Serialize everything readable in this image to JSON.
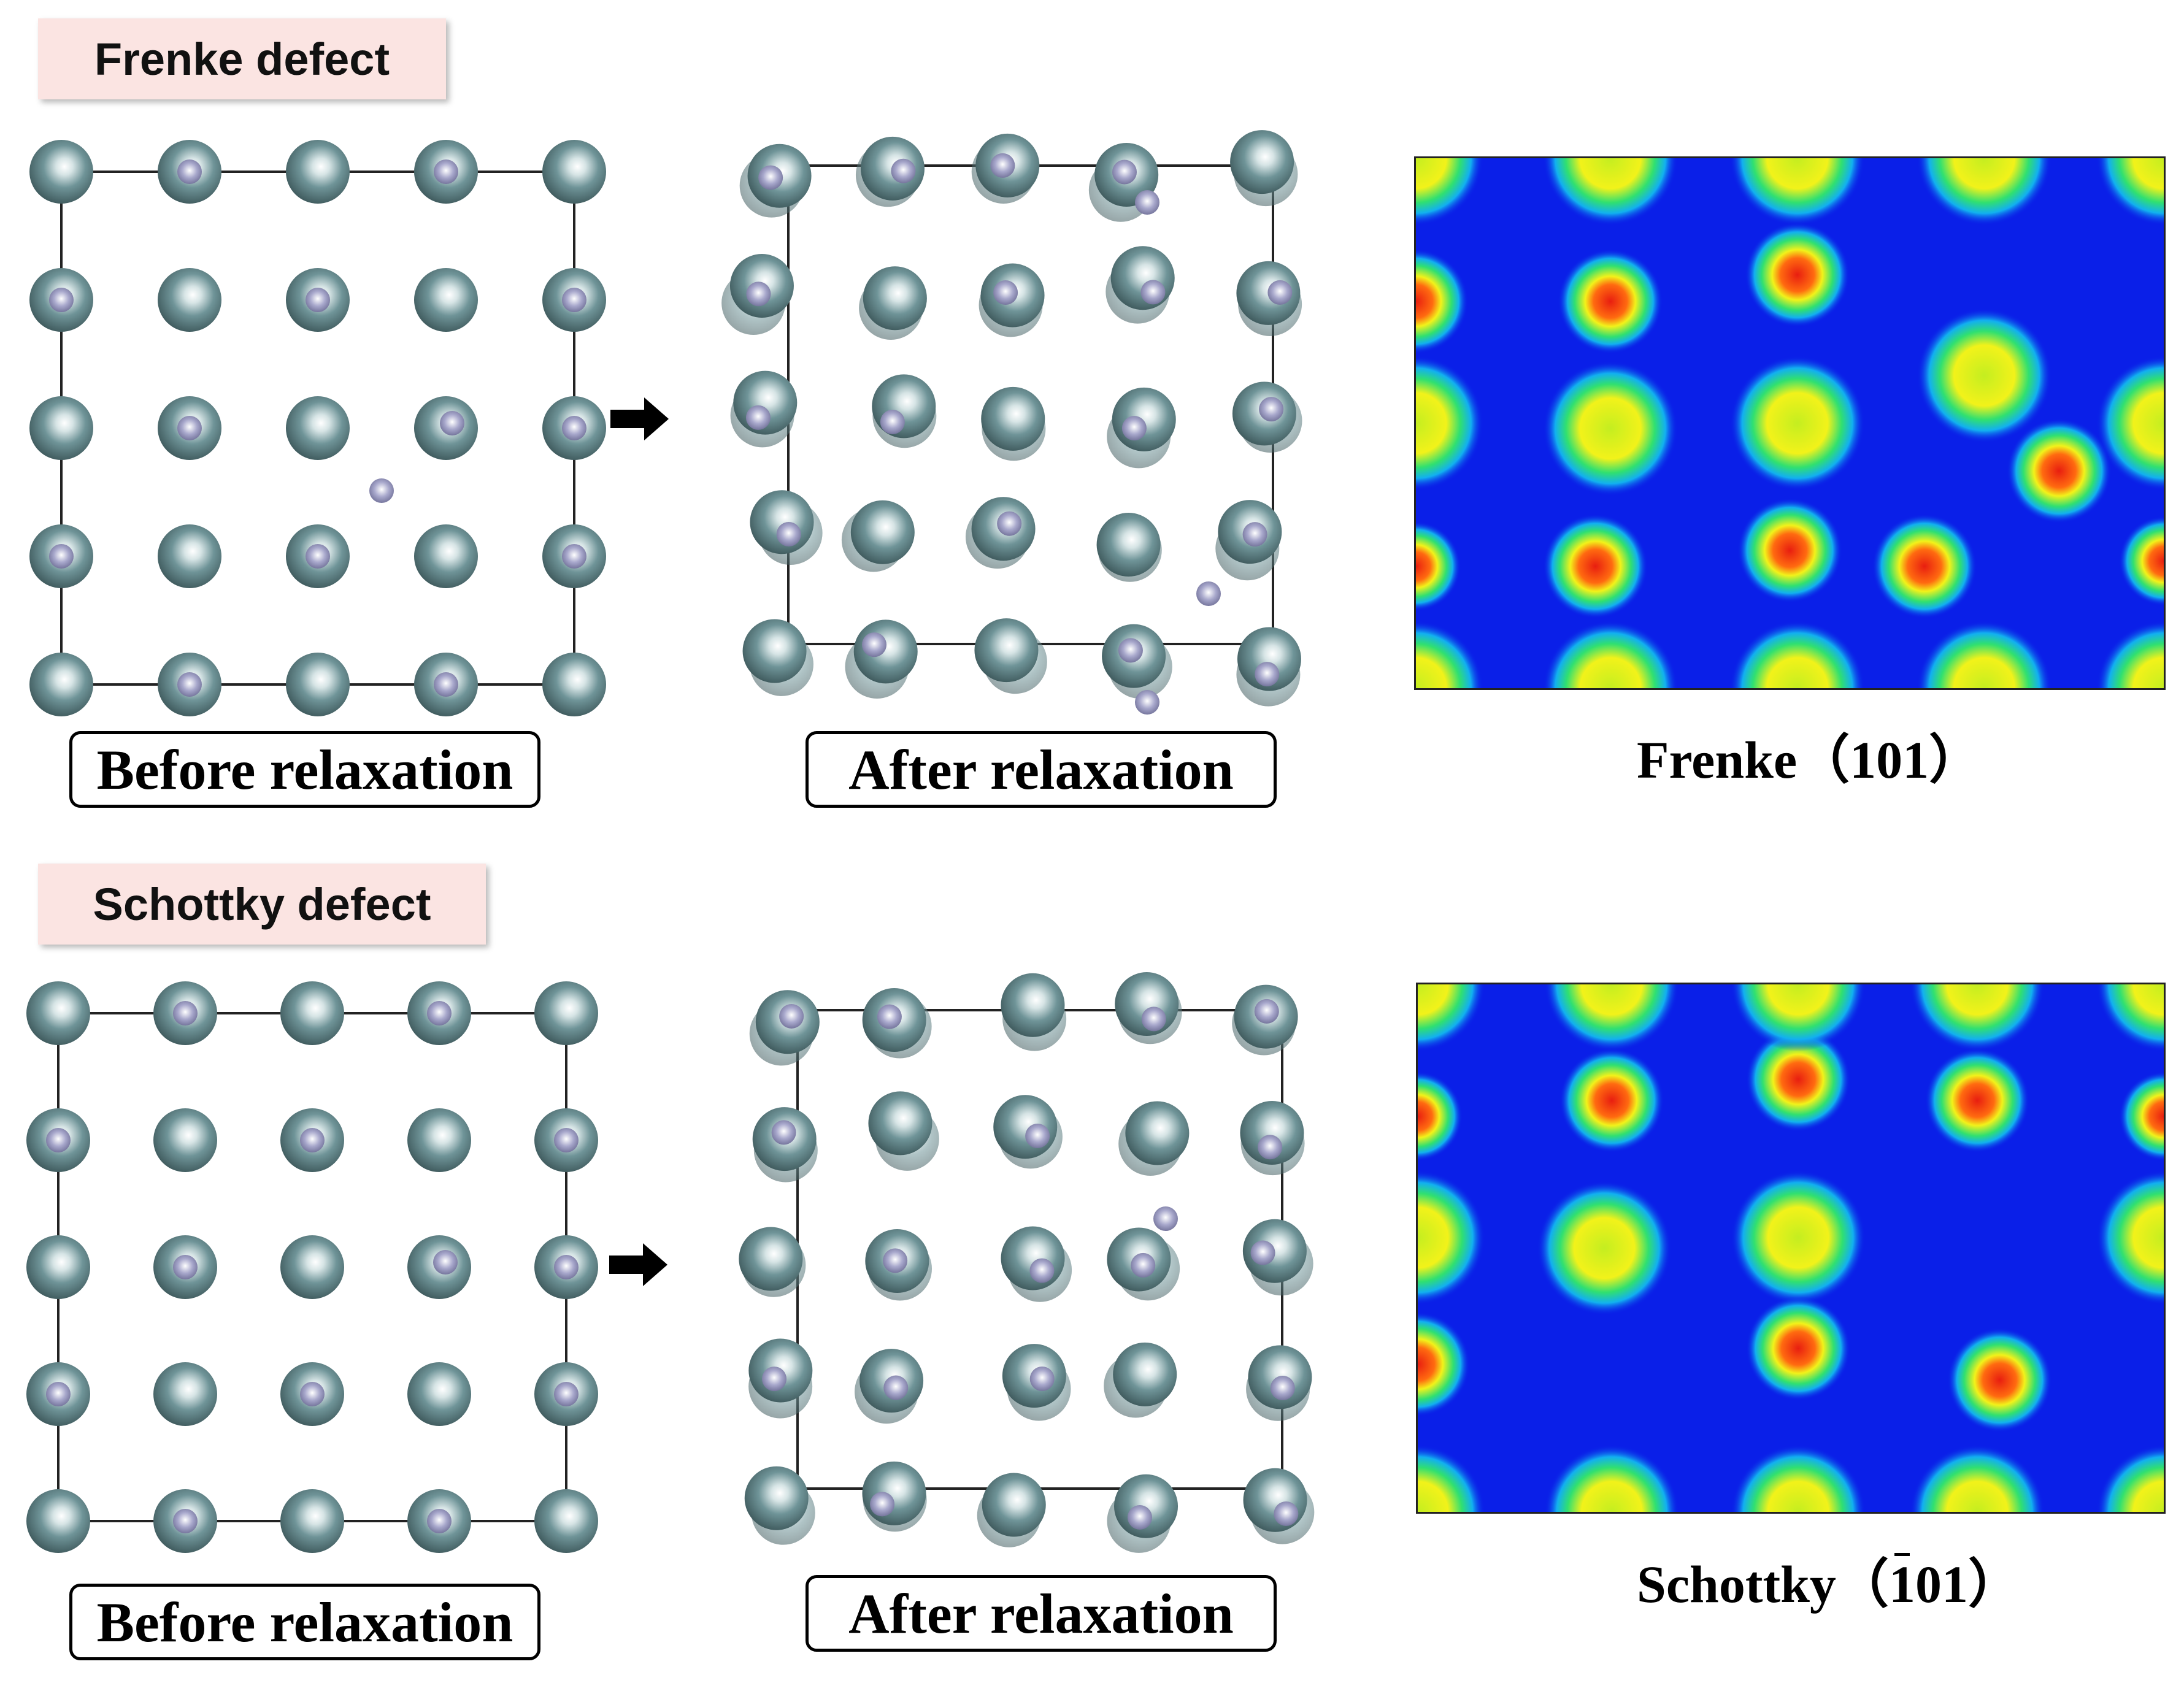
{
  "panels": {
    "frenkel": {
      "label": "Frenke defect",
      "before_caption": "Before relaxation",
      "after_caption": "After relaxation",
      "map_caption_prefix": "Frenke（",
      "map_caption_bar": "",
      "map_caption_rest": "101）"
    },
    "schottky": {
      "label": "Schottky defect",
      "before_caption": "Before relaxation",
      "after_caption": "After relaxation",
      "map_caption_prefix": "Schottky（",
      "map_caption_bar": "1",
      "map_caption_rest": "01）"
    }
  },
  "colors": {
    "large_atom": "#6f9498",
    "small_atom": "#a8a8cc",
    "map_background": "#0a1fe8",
    "map_peak_high": "#e81e10",
    "map_peak_mid": "#f2f21a",
    "label_background": "#fbe4e2"
  },
  "icons": {
    "relax_arrow": "right-arrow-icon"
  }
}
